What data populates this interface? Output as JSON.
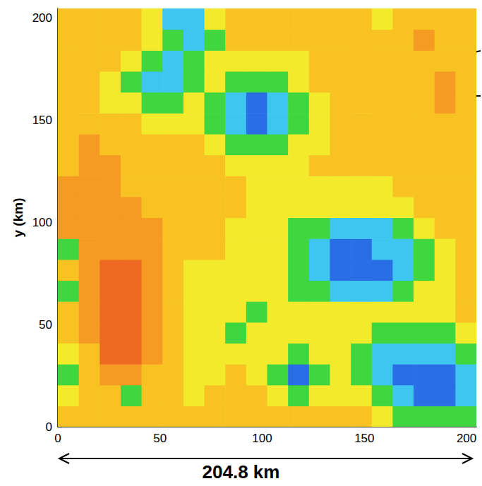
{
  "chart_data": {
    "type": "heatmap",
    "ylabel": "y (km)",
    "annotation": "204.8 km",
    "xlim": [
      0,
      204.8
    ],
    "ylim": [
      0,
      204.8
    ],
    "xticks": [
      0,
      50,
      100,
      150,
      200
    ],
    "yticks": [
      0,
      50,
      100,
      150,
      200
    ],
    "grid": false,
    "x": [
      0,
      10.24,
      20.48,
      30.72,
      40.96,
      51.2,
      61.44,
      71.68,
      81.92,
      92.16,
      102.4,
      112.64,
      122.88,
      133.12,
      143.36,
      153.6,
      163.84,
      174.08,
      184.32,
      194.56
    ],
    "y": [
      0,
      10.24,
      20.48,
      30.72,
      40.96,
      51.2,
      61.44,
      71.68,
      81.92,
      92.16,
      102.4,
      112.64,
      122.88,
      133.12,
      143.36,
      153.6,
      163.84,
      174.08,
      184.32,
      194.56
    ],
    "cells": [
      [
        4,
        4,
        4,
        4,
        4,
        4,
        4,
        4,
        4,
        4,
        4,
        4,
        4,
        4,
        4,
        3,
        2,
        2,
        2,
        2
      ],
      [
        3,
        4,
        4,
        2,
        4,
        4,
        3,
        4,
        4,
        4,
        3,
        2,
        3,
        3,
        3,
        2,
        1,
        0,
        0,
        1
      ],
      [
        2,
        4,
        5,
        5,
        4,
        4,
        3,
        3,
        4,
        3,
        2,
        0,
        2,
        3,
        2,
        1,
        0,
        0,
        0,
        1
      ],
      [
        3,
        4,
        6,
        6,
        5,
        4,
        3,
        3,
        3,
        3,
        3,
        2,
        3,
        3,
        2,
        1,
        1,
        1,
        1,
        2
      ],
      [
        4,
        5,
        6,
        6,
        5,
        4,
        3,
        3,
        2,
        3,
        3,
        3,
        3,
        3,
        3,
        2,
        2,
        2,
        2,
        3
      ],
      [
        4,
        5,
        6,
        6,
        5,
        4,
        3,
        3,
        3,
        2,
        3,
        3,
        3,
        3,
        3,
        3,
        3,
        3,
        3,
        4
      ],
      [
        2,
        5,
        6,
        6,
        5,
        4,
        3,
        3,
        3,
        3,
        3,
        2,
        2,
        1,
        1,
        1,
        2,
        3,
        3,
        4
      ],
      [
        4,
        5,
        6,
        6,
        5,
        4,
        3,
        3,
        3,
        3,
        3,
        2,
        1,
        0,
        0,
        0,
        1,
        2,
        3,
        4
      ],
      [
        2,
        5,
        5,
        5,
        5,
        4,
        4,
        4,
        3,
        3,
        3,
        2,
        1,
        0,
        0,
        1,
        1,
        2,
        3,
        4
      ],
      [
        5,
        5,
        5,
        5,
        5,
        4,
        4,
        4,
        3,
        3,
        3,
        2,
        2,
        1,
        1,
        1,
        2,
        3,
        4,
        4
      ],
      [
        5,
        5,
        5,
        5,
        4,
        4,
        4,
        4,
        4,
        3,
        3,
        3,
        3,
        3,
        3,
        3,
        3,
        4,
        4,
        4
      ],
      [
        5,
        5,
        5,
        4,
        4,
        4,
        4,
        4,
        4,
        3,
        3,
        3,
        3,
        3,
        3,
        3,
        4,
        4,
        4,
        4
      ],
      [
        4,
        5,
        5,
        4,
        4,
        4,
        4,
        4,
        3,
        3,
        3,
        3,
        4,
        4,
        4,
        4,
        4,
        4,
        4,
        4
      ],
      [
        4,
        5,
        4,
        4,
        4,
        4,
        4,
        3,
        2,
        2,
        2,
        3,
        3,
        4,
        4,
        4,
        4,
        4,
        4,
        4
      ],
      [
        4,
        4,
        4,
        4,
        3,
        3,
        3,
        2,
        1,
        0,
        1,
        2,
        3,
        4,
        4,
        4,
        4,
        4,
        4,
        4
      ],
      [
        4,
        4,
        3,
        3,
        2,
        2,
        3,
        2,
        1,
        0,
        1,
        2,
        3,
        4,
        4,
        4,
        4,
        4,
        5,
        4
      ],
      [
        4,
        4,
        3,
        2,
        1,
        1,
        2,
        3,
        2,
        2,
        2,
        3,
        4,
        4,
        4,
        4,
        4,
        4,
        5,
        4
      ],
      [
        4,
        4,
        4,
        3,
        2,
        1,
        2,
        3,
        3,
        3,
        3,
        3,
        4,
        4,
        4,
        4,
        4,
        4,
        4,
        4
      ],
      [
        4,
        4,
        4,
        4,
        3,
        2,
        1,
        2,
        4,
        4,
        4,
        4,
        4,
        4,
        4,
        4,
        4,
        5,
        4,
        4
      ],
      [
        4,
        4,
        4,
        4,
        3,
        1,
        1,
        3,
        4,
        4,
        4,
        4,
        4,
        4,
        4,
        3,
        4,
        4,
        4,
        4
      ]
    ],
    "colorbar": {
      "range": [
        0,
        6
      ],
      "colors": [
        "#2a6ee6",
        "#3ec6f0",
        "#3fd63f",
        "#f2ea2a",
        "#f8c322",
        "#f59a22",
        "#ee6a22"
      ]
    }
  }
}
